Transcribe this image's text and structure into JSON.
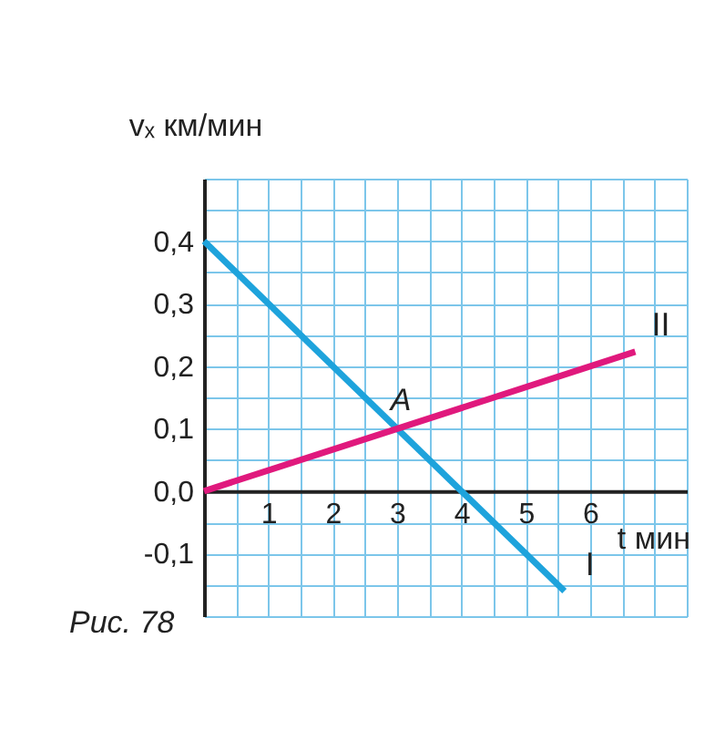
{
  "chart_data": {
    "type": "line",
    "xlabel": "t мин",
    "ylabel": "vₓ км/мин",
    "series": [
      {
        "name": "I",
        "color": "#1ea3dc",
        "x": [
          0,
          5.6
        ],
        "values": [
          0.4,
          -0.16
        ]
      },
      {
        "name": "II",
        "color": "#e0197d",
        "x": [
          0,
          6.7
        ],
        "values": [
          0,
          0.223
        ]
      }
    ],
    "annotations": [
      {
        "text": "A",
        "x": 3,
        "y": 0.1
      },
      "Рис. 78"
    ],
    "xlim": [
      0,
      7.5
    ],
    "ylim": [
      -0.2,
      0.5
    ],
    "xticks": [
      {
        "value": 0,
        "label": null
      },
      {
        "value": 0.5,
        "label": null
      },
      1,
      {
        "value": 1.5,
        "label": null
      },
      2,
      {
        "value": 2.5,
        "label": null
      },
      3,
      {
        "value": 3.5,
        "label": null
      },
      4,
      {
        "value": 4.5,
        "label": null
      },
      5,
      {
        "value": 5.5,
        "label": null
      },
      6,
      {
        "value": 6.5,
        "label": null
      },
      {
        "value": 7,
        "label": null
      },
      {
        "value": 7.5,
        "label": null
      }
    ],
    "yticks": [
      {
        "value": -0.2,
        "label": null
      },
      {
        "value": -0.15,
        "label": null
      },
      {
        "value": -0.1,
        "label": "-0,1"
      },
      {
        "value": -0.05,
        "label": null
      },
      {
        "value": 0,
        "label": "0,0"
      },
      {
        "value": 0.05,
        "label": null
      },
      {
        "value": 0.1,
        "label": "0,1"
      },
      {
        "value": 0.15,
        "label": null
      },
      {
        "value": 0.2,
        "label": "0,2"
      },
      {
        "value": 0.25,
        "label": null
      },
      {
        "value": 0.3,
        "label": "0,3"
      },
      {
        "value": 0.35,
        "label": null
      },
      {
        "value": 0.4,
        "label": "0,4"
      },
      {
        "value": 0.45,
        "label": null
      },
      {
        "value": 0.5,
        "label": null
      }
    ],
    "grid": true,
    "marker": "none",
    "line_style": "solid"
  }
}
